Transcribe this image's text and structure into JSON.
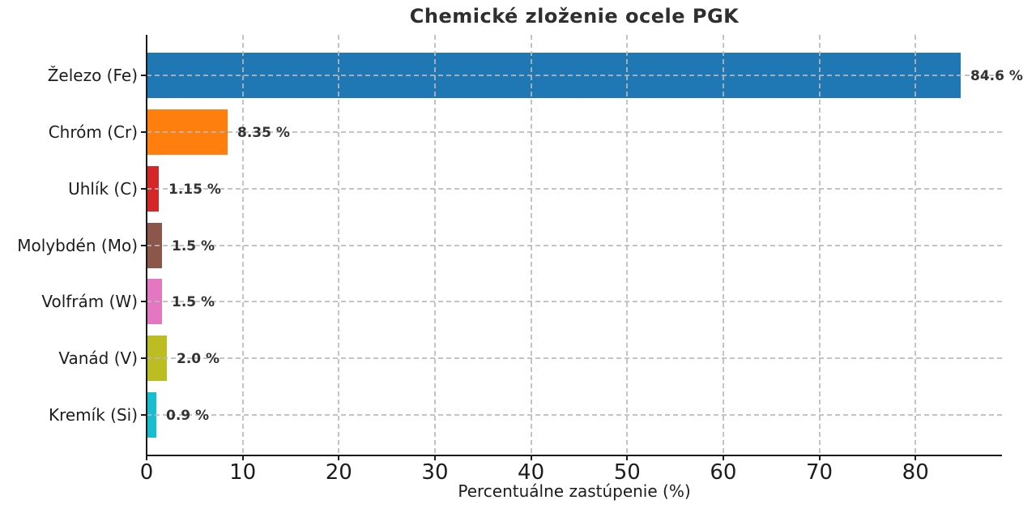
{
  "chart_data": {
    "type": "bar",
    "orientation": "horizontal",
    "title": "Chemické zloženie ocele PGK",
    "xlabel": "Percentuálne zastúpenie (%)",
    "ylabel": "",
    "categories": [
      "Železo (Fe)",
      "Chróm (Cr)",
      "Uhlík (C)",
      "Molybdén (Mo)",
      "Volfrám (W)",
      "Vanád (V)",
      "Kremík (Si)"
    ],
    "values": [
      84.6,
      8.35,
      1.15,
      1.5,
      1.5,
      2.0,
      0.9
    ],
    "value_labels": [
      "84.6 %",
      "8.35 %",
      "1.15 %",
      "1.5 %",
      "1.5 %",
      "2.0 %",
      "0.9 %"
    ],
    "bar_colors": [
      "#1f77b4",
      "#ff7f0e",
      "#d62728",
      "#8c564b",
      "#e377c2",
      "#bcbd22",
      "#17becf"
    ],
    "xticks": [
      0,
      10,
      20,
      30,
      40,
      50,
      60,
      70,
      80
    ],
    "xlim": [
      0,
      89
    ],
    "grid": "dashed",
    "grid_color": "#bdbdbd",
    "text_color": "#1c1c1c",
    "title_color": "#2f2f2f",
    "value_label_color": "#333333",
    "background": "#ffffff",
    "legend": "none"
  }
}
